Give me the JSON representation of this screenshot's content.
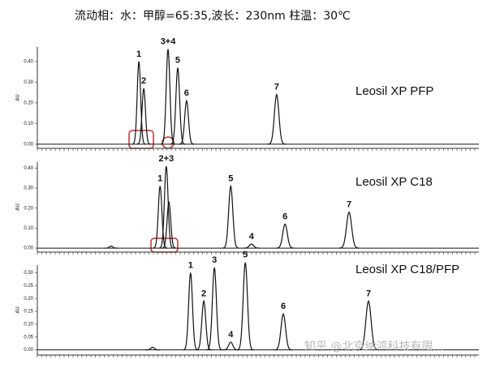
{
  "title": "流动相：水：甲醇=65:35,波长：230nm 柱温：30℃",
  "watermark": "知乎 @北京纳鸿科技有限...",
  "chart_data": [
    {
      "type": "chromatogram",
      "name": "Leosil XP PFP",
      "ylabel": "AU",
      "color": "#111111",
      "xlim": [
        0,
        100
      ],
      "ylim": [
        -0.02,
        0.47
      ],
      "yticks": [
        {
          "value": 0,
          "label": "0.00"
        },
        {
          "value": 0.1,
          "label": "0.10"
        },
        {
          "value": 0.2,
          "label": "0.20"
        },
        {
          "value": 0.3,
          "label": "0.30"
        },
        {
          "value": 0.4,
          "label": "0.40"
        }
      ],
      "x": [
        23.0,
        24.1,
        29.6,
        31.8,
        33.8,
        54.2
      ],
      "values": [
        0.4,
        0.27,
        0.46,
        0.37,
        0.21,
        0.24
      ],
      "labels": [
        "1",
        "2",
        "3+4",
        "5",
        "6",
        "7"
      ]
    },
    {
      "type": "chromatogram",
      "name": "Leosil XP C18",
      "ylabel": "AU",
      "color": "#111111",
      "xlim": [
        0,
        100
      ],
      "ylim": [
        -0.02,
        0.43
      ],
      "yticks": [
        {
          "value": 0,
          "label": "0.00"
        },
        {
          "value": 0.1,
          "label": "0.10"
        },
        {
          "value": 0.2,
          "label": "0.20"
        },
        {
          "value": 0.3,
          "label": "0.30"
        },
        {
          "value": 0.4,
          "label": "0.40"
        }
      ],
      "x": [
        16.7,
        27.8,
        29.2,
        29.8,
        43.8,
        48.5,
        56.1,
        70.6
      ],
      "values": [
        0.01,
        0.31,
        0.41,
        0.23,
        0.31,
        0.02,
        0.12,
        0.18
      ],
      "labels": [
        null,
        "1",
        "2+3",
        null,
        "5",
        "4",
        "6",
        "7"
      ]
    },
    {
      "type": "chromatogram",
      "name": "Leosil XP C18/PFP",
      "ylabel": "AU",
      "color": "#111111",
      "xlim": [
        0,
        100
      ],
      "ylim": [
        -0.02,
        0.33
      ],
      "yticks": [
        {
          "value": 0,
          "label": "0.00"
        },
        {
          "value": 0.05,
          "label": "0.05"
        },
        {
          "value": 0.1,
          "label": "0.10"
        },
        {
          "value": 0.15,
          "label": "0.15"
        },
        {
          "value": 0.2,
          "label": "0.20"
        },
        {
          "value": 0.25,
          "label": "0.25"
        },
        {
          "value": 0.3,
          "label": "0.30"
        }
      ],
      "x": [
        26.1,
        34.7,
        37.7,
        40.1,
        43.8,
        47.1,
        55.7,
        75.0
      ],
      "values": [
        0.01,
        0.3,
        0.19,
        0.32,
        0.03,
        0.34,
        0.14,
        0.19
      ],
      "labels": [
        null,
        "1",
        "2",
        "3",
        "4",
        "5",
        "6",
        "7"
      ]
    }
  ]
}
